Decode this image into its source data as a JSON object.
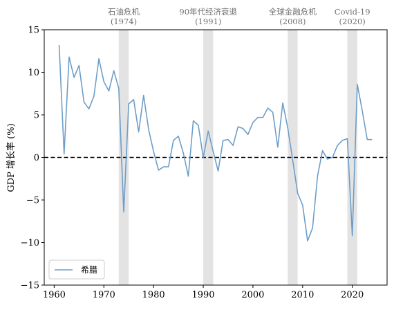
{
  "chart_data": {
    "type": "line",
    "ylabel": "GDP 增长率 (%)",
    "xlabel": "",
    "xlim": [
      1958,
      2027
    ],
    "ylim": [
      -15,
      15
    ],
    "x_ticks": [
      1960,
      1970,
      1980,
      1990,
      2000,
      2010,
      2020
    ],
    "y_ticks": [
      -15,
      -10,
      -5,
      0,
      5,
      10,
      15
    ],
    "grid": false,
    "legend": {
      "position": "bottom-left"
    },
    "zero_line": {
      "y": 0,
      "style": "dashed",
      "color": "#000000"
    },
    "series": [
      {
        "name": "希腊",
        "color": "#6d9ec8",
        "x": [
          1961,
          1962,
          1963,
          1964,
          1965,
          1966,
          1967,
          1968,
          1969,
          1970,
          1971,
          1972,
          1973,
          1974,
          1975,
          1976,
          1977,
          1978,
          1979,
          1980,
          1981,
          1982,
          1983,
          1984,
          1985,
          1986,
          1987,
          1988,
          1989,
          1990,
          1991,
          1992,
          1993,
          1994,
          1995,
          1996,
          1997,
          1998,
          1999,
          2000,
          2001,
          2002,
          2003,
          2004,
          2005,
          2006,
          2007,
          2008,
          2009,
          2010,
          2011,
          2012,
          2013,
          2014,
          2015,
          2016,
          2017,
          2018,
          2019,
          2020,
          2021,
          2022,
          2023,
          2024
        ],
        "y": [
          13.2,
          0.4,
          11.8,
          9.4,
          10.8,
          6.5,
          5.7,
          7.2,
          11.6,
          8.9,
          7.8,
          10.2,
          8.1,
          -6.4,
          6.3,
          6.8,
          3.0,
          7.3,
          3.3,
          0.7,
          -1.5,
          -1.1,
          -1.1,
          2.0,
          2.5,
          0.5,
          -2.2,
          4.3,
          3.8,
          0.0,
          3.1,
          0.7,
          -1.6,
          2.0,
          2.1,
          1.4,
          3.6,
          3.4,
          2.7,
          4.1,
          4.7,
          4.7,
          5.8,
          5.3,
          1.2,
          6.4,
          3.5,
          -0.3,
          -4.2,
          -5.6,
          -9.8,
          -8.3,
          -2.2,
          0.8,
          -0.2,
          0.0,
          1.4,
          2.0,
          2.2,
          -9.2,
          8.6,
          5.5,
          2.1,
          2.1
        ]
      }
    ],
    "crisis_periods": [
      {
        "label": "石油危机",
        "year_label": "(1974)",
        "start": 1973,
        "end": 1975
      },
      {
        "label": "90年代经济衰退",
        "year_label": "(1991)",
        "start": 1990,
        "end": 1992
      },
      {
        "label": "全球金融危机",
        "year_label": "(2008)",
        "start": 2007,
        "end": 2009
      },
      {
        "label": "Covid-19",
        "year_label": "(2020)",
        "start": 2019,
        "end": 2021
      }
    ],
    "colors": {
      "shade": "#c8c8c8",
      "crisis_text": "#707070"
    }
  }
}
